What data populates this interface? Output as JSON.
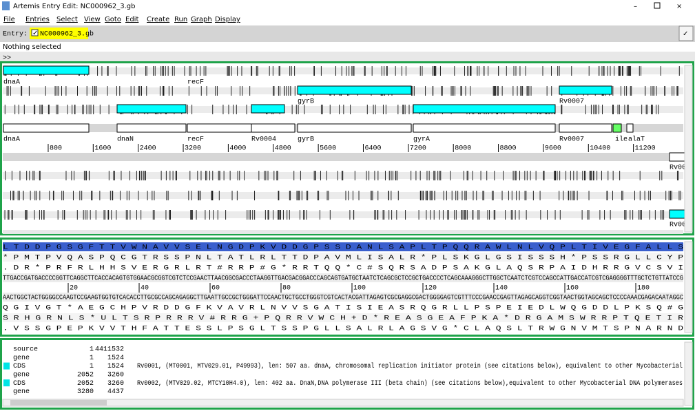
{
  "window": {
    "title": "Artemis Entry Edit: NC000962_3.gb"
  },
  "menu": [
    "File",
    "Entries",
    "Select",
    "View",
    "Goto",
    "Edit",
    "Create",
    "Run",
    "Graph",
    "Display"
  ],
  "entry": {
    "label": "Entry:",
    "name": "NC000962_3.gb"
  },
  "status": "Nothing selected",
  "feature_view": {
    "labels": [
      "dnaA",
      "recF",
      "gyrB",
      "Rv0007",
      "dnaA",
      "dnaN",
      "recF",
      "Rv0004",
      "gyrB",
      "gyrA",
      "Rv0007",
      "ile",
      "alaT",
      "Rv00",
      "Rv00"
    ],
    "ruler": [
      800,
      1600,
      2400,
      3200,
      4000,
      4800,
      5600,
      6400,
      7200,
      8000,
      8800,
      9600,
      10400,
      11200
    ]
  },
  "base_view": {
    "forward_frames": [
      "L T D D P G S G F T T V W N A V V S E L N G D P K V D D G P S S D A N L S A P L T P Q Q R A W L N L V Q P L T I V E G F A L L S",
      "* P M T P V Q A S P Q C G T R S S P N L T A T L R L T T D P A V M L I S A L R * P L S K G L G S I S S S H * P S S R G L L C Y P",
      ". D R * P R F R L H H S V E R G R L R T # R R P # G * R R T Q Q * C # S Q R S A D P S A K G L A Q S R P A I D H R R G V C S V I"
    ],
    "forward_dna": "TTGACCGATGACCCCGGTTCAGGCTTCACCACAGTGTGGAACGCGGTCGTCTCCGAACTTAACGGCGACCCTAAGGTTGACGACGGACCCAGCAGTGATGCTAATCTCAGCGCTCCGCTGACCCCTCAGCAAAGGGCTTGGCTCAATCTCGTCCAGCCATTGACCATCGTCGAGGGGTTTGCTCTGTTATCCG",
    "ruler": [
      20,
      40,
      60,
      80,
      100,
      120,
      140,
      160,
      180
    ],
    "reverse_dna": "AACTGGCTACTGGGGCCAAGTCCGAAGTGGTGTCACACCTTGCGCCAGCAGAGGCTTGAATTGCCGCTGGGATTCCAACTGCTGCCTGGGTCGTCACTACGATTAGAGTCGCGAGGCGACTGGGGAGTCGTTTCCCGAACCGAGTTAGAGCAGGTCGGTAACTGGTAGCAGCTCCCCAAACGAGACAATAGGC",
    "reverse_frames": [
      "Q G I V G T * A E G C H P V R D D G F K V A V R L N V V S G A T I S I E A S R Q G R L L P S P E I E D L W Q G D D L P K S Q # G",
      "S R H G R N L S * U L T S R P R R R V # R R G + P Q R R V W C H + D * R E A S G E A F P K A * D R G A M S W R R P T Q E T I R",
      ". V S S G P E P K V V T H F A T T E S S L P S G L T S S P G L L S A L R L A G S V G * C L A Q S L T R W G N V M T S P N A R N D"
    ]
  },
  "feature_list": [
    [
      "source",
      1,
      4411532
    ],
    [
      "gene",
      1,
      1524
    ],
    [
      "CDS",
      1,
      1524,
      "Rv0001, (MT0001, MTV029.01, P49993), len: 507 aa. dnaA, chromosomal replication initiator protein (see citations below), equivalent to other Mycobacterial"
    ],
    [
      "gene",
      2052,
      3260
    ],
    [
      "CDS",
      2052,
      3260,
      "Rv0002, (MTV029.02, MTCY10H4.0), len: 402 aa. DnaN,DNA polymerase III (beta chain) (see citations below),equivalent to other Mycobacterial DNA polymerases"
    ],
    [
      "gene",
      3280,
      4437
    ]
  ]
}
